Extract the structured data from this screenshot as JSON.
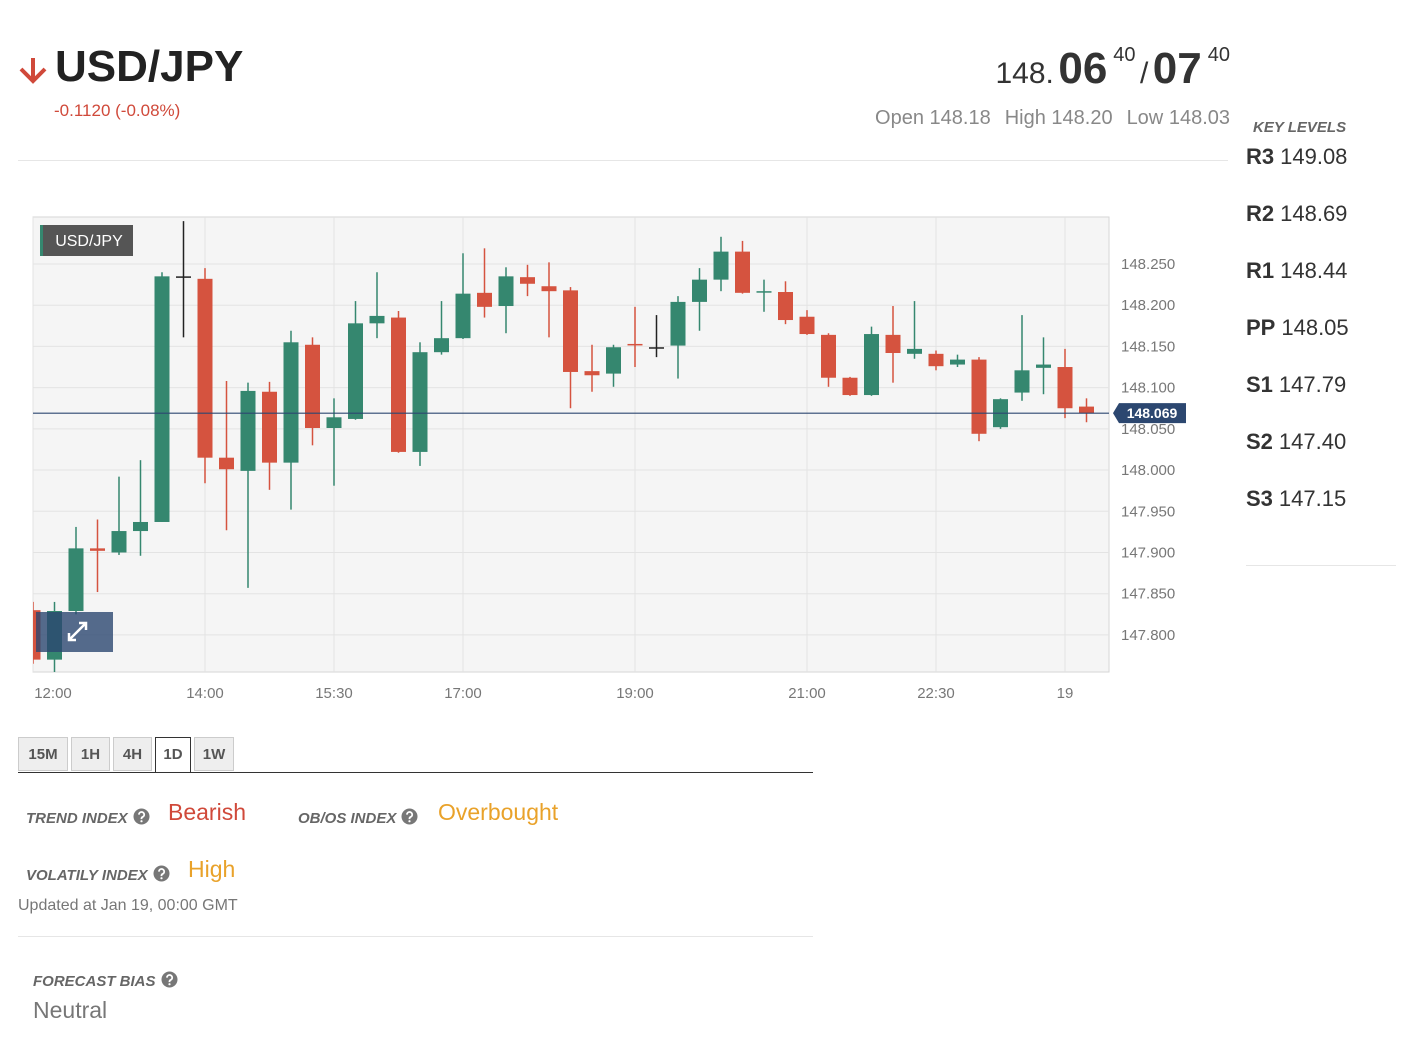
{
  "header": {
    "symbol": "USD/JPY",
    "change": "-0.1120 (-0.08%)",
    "bid_prefix": "148.",
    "bid_big": "06",
    "bid_pip": "40",
    "separator": "/",
    "ask_big": "07",
    "ask_pip": "40",
    "stats": [
      {
        "label": "Open",
        "value": "148.18"
      },
      {
        "label": "High",
        "value": "148.20"
      },
      {
        "label": "Low",
        "value": "148.03"
      }
    ]
  },
  "key_levels": {
    "title": "KEY LEVELS",
    "levels": [
      {
        "label": "R3",
        "value": "149.08"
      },
      {
        "label": "R2",
        "value": "148.69"
      },
      {
        "label": "R1",
        "value": "148.44"
      },
      {
        "label": "PP",
        "value": "148.05"
      },
      {
        "label": "S1",
        "value": "147.79"
      },
      {
        "label": "S2",
        "value": "147.40"
      },
      {
        "label": "S3",
        "value": "147.15"
      }
    ]
  },
  "chart_data": {
    "type": "candlestick",
    "title": "USD/JPY",
    "categories": [
      "12:00",
      null,
      null,
      null,
      null,
      null,
      null,
      null,
      "14:00",
      null,
      null,
      null,
      null,
      null,
      "15:30",
      null,
      null,
      null,
      null,
      null,
      "17:00",
      null,
      null,
      null,
      null,
      null,
      null,
      null,
      "19:00",
      null,
      null,
      null,
      null,
      null,
      null,
      null,
      "21:00",
      null,
      null,
      null,
      null,
      null,
      "22:30",
      null,
      null,
      null,
      null,
      null,
      "19",
      null
    ],
    "open": [
      147.83,
      147.77,
      147.829,
      147.905,
      147.9,
      147.926,
      147.937,
      148.235,
      148.232,
      148.015,
      147.999,
      148.095,
      148.009,
      148.152,
      148.051,
      148.062,
      148.178,
      148.185,
      148.022,
      148.143,
      148.16,
      148.215,
      148.199,
      148.234,
      148.223,
      148.218,
      148.12,
      148.117,
      148.153,
      148.149,
      148.151,
      148.204,
      148.231,
      148.265,
      148.216,
      148.216,
      148.186,
      148.164,
      148.112,
      148.091,
      148.164,
      148.141,
      148.141,
      148.128,
      148.134,
      148.052,
      148.094,
      148.124,
      148.125,
      148.077
    ],
    "high": [
      147.84,
      147.84,
      147.931,
      147.94,
      147.992,
      148.012,
      148.24,
      148.302,
      148.245,
      148.108,
      148.106,
      148.107,
      148.169,
      148.161,
      148.087,
      148.205,
      148.24,
      148.193,
      148.155,
      148.205,
      148.263,
      148.269,
      148.246,
      148.249,
      148.252,
      148.222,
      148.152,
      148.152,
      148.198,
      148.188,
      148.211,
      148.245,
      148.283,
      148.278,
      148.231,
      148.229,
      148.194,
      148.166,
      148.113,
      148.174,
      148.199,
      148.205,
      148.145,
      148.14,
      148.137,
      148.087,
      148.188,
      148.161,
      148.147,
      148.087
    ],
    "low": [
      147.765,
      147.755,
      147.825,
      147.852,
      147.897,
      147.896,
      147.937,
      148.161,
      147.984,
      147.927,
      147.857,
      147.976,
      147.952,
      148.03,
      147.981,
      148.061,
      148.16,
      148.021,
      148.005,
      148.14,
      148.159,
      148.185,
      148.166,
      148.211,
      148.161,
      148.075,
      148.095,
      148.101,
      148.125,
      148.137,
      148.111,
      148.169,
      148.217,
      148.214,
      148.192,
      148.177,
      148.164,
      148.101,
      148.09,
      148.09,
      148.106,
      148.135,
      148.121,
      148.125,
      148.035,
      148.05,
      148.084,
      148.092,
      148.063,
      148.058
    ],
    "close": [
      147.77,
      147.829,
      147.905,
      147.902,
      147.926,
      147.937,
      148.235,
      148.235,
      148.015,
      148.001,
      148.096,
      148.009,
      148.155,
      148.051,
      148.064,
      148.178,
      148.187,
      148.022,
      148.143,
      148.16,
      148.214,
      148.198,
      148.235,
      148.226,
      148.217,
      148.119,
      148.115,
      148.149,
      148.152,
      148.149,
      148.204,
      148.231,
      148.265,
      148.215,
      148.217,
      148.182,
      148.165,
      148.112,
      148.091,
      148.165,
      148.142,
      148.147,
      148.126,
      148.134,
      148.044,
      148.086,
      148.121,
      148.128,
      148.075,
      148.069
    ],
    "up_color": "#35876f",
    "down_color": "#d5533f",
    "doji_color": "#222222",
    "ylim": [
      147.755,
      148.307
    ],
    "yticks": [
      {
        "value": 147.8,
        "label": "147.800"
      },
      {
        "value": 147.85,
        "label": "147.850"
      },
      {
        "value": 147.9,
        "label": "147.900"
      },
      {
        "value": 147.95,
        "label": "147.950"
      },
      {
        "value": 148.0,
        "label": "148.000"
      },
      {
        "value": 148.05,
        "label": "148.050"
      },
      {
        "value": 148.1,
        "label": "148.100"
      },
      {
        "value": 148.15,
        "label": "148.150"
      },
      {
        "value": 148.2,
        "label": "148.200"
      },
      {
        "value": 148.25,
        "label": "148.250"
      }
    ],
    "price_line": {
      "value": 148.069,
      "label": "148.069",
      "color": "#2c4770"
    },
    "grid": true
  },
  "tabs": {
    "items": [
      "15M",
      "1H",
      "4H",
      "1D",
      "1W"
    ],
    "active": 3
  },
  "indices": [
    {
      "label": "TREND INDEX",
      "value": "Bearish",
      "color": "#d0493a"
    },
    {
      "label": "OB/OS INDEX",
      "value": "Overbought",
      "color": "#e9a22a"
    },
    {
      "label": "VOLATILY INDEX",
      "value": "High",
      "color": "#e9a22a"
    }
  ],
  "updated": "Updated at Jan 19, 00:00 GMT",
  "forecast": {
    "label": "FORECAST BIAS",
    "value": "Neutral"
  }
}
